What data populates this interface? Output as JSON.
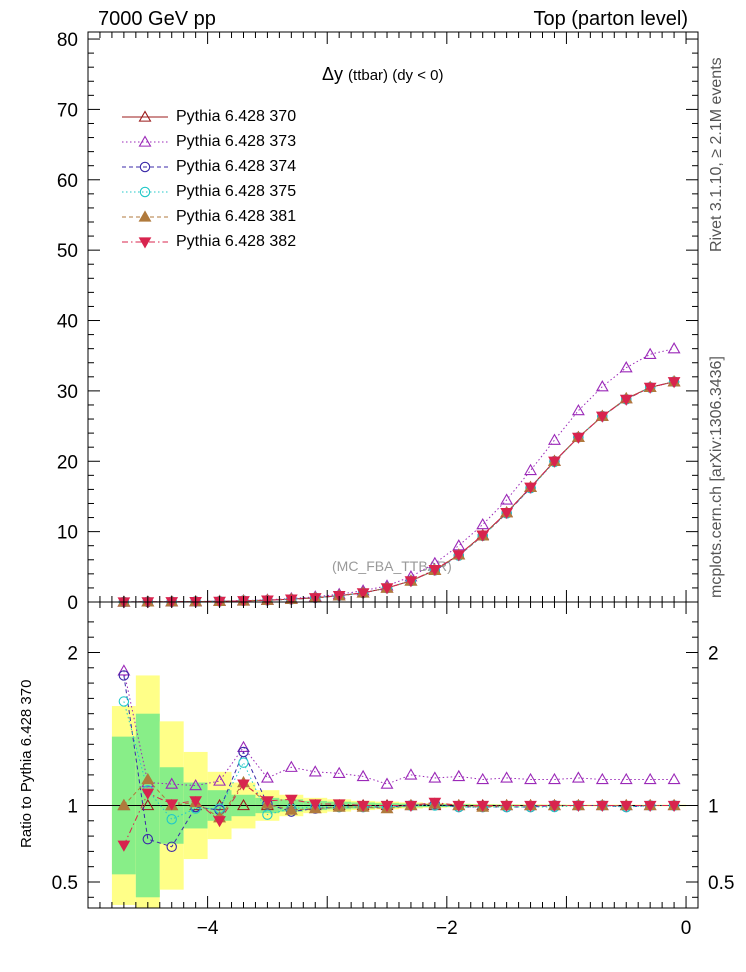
{
  "header": {
    "left": "7000 GeV pp",
    "right": "Top (parton level)"
  },
  "side_labels": {
    "rivet": "Rivet 3.1.10, ≥ 2.1M events",
    "mcplots": "mcplots.cern.ch [arXiv:1306.3436]"
  },
  "watermark": "(MC_FBA_TTBAR)",
  "chart_data": [
    {
      "type": "scatter",
      "title_main": "Δy",
      "title_sub": "(ttbar) (dy < 0)",
      "xlim": [
        -5.0,
        0.1
      ],
      "ylim": [
        0,
        81
      ],
      "yticks": [
        0,
        10,
        20,
        30,
        40,
        50,
        60,
        70,
        80
      ],
      "legend_position": "top-left",
      "x": [
        -4.7,
        -4.5,
        -4.3,
        -4.1,
        -3.9,
        -3.7,
        -3.5,
        -3.3,
        -3.1,
        -2.9,
        -2.7,
        -2.5,
        -2.3,
        -2.1,
        -1.9,
        -1.7,
        -1.5,
        -1.3,
        -1.1,
        -0.9,
        -0.7,
        -0.5,
        -0.3,
        -0.1
      ],
      "series": [
        {
          "name": "Pythia 6.428 370",
          "color": "#9b1b1b",
          "marker": "triangle-open",
          "line": "solid",
          "values": [
            0.005,
            0.02,
            0.04,
            0.06,
            0.1,
            0.15,
            0.25,
            0.4,
            0.6,
            0.9,
            1.3,
            2.0,
            3.0,
            4.5,
            6.7,
            9.5,
            12.7,
            16.3,
            20.0,
            23.4,
            26.4,
            28.9,
            30.5,
            31.3
          ]
        },
        {
          "name": "Pythia 6.428 373",
          "color": "#9b29b8",
          "marker": "triangle-open",
          "line": "dotted",
          "values": [
            0.009,
            0.023,
            0.046,
            0.069,
            0.12,
            0.2,
            0.3,
            0.5,
            0.74,
            1.1,
            1.6,
            2.3,
            3.6,
            5.5,
            8.0,
            11.0,
            14.5,
            18.7,
            23.0,
            27.2,
            30.6,
            33.3,
            35.2,
            36.0
          ]
        },
        {
          "name": "Pythia 6.428 374",
          "color": "#3b2aa8",
          "marker": "circle-open",
          "line": "dashed",
          "values": [
            0.009,
            0.016,
            0.029,
            0.06,
            0.1,
            0.19,
            0.25,
            0.38,
            0.59,
            0.88,
            1.29,
            1.99,
            3.0,
            4.5,
            6.6,
            9.4,
            12.6,
            16.2,
            20.0,
            23.4,
            26.4,
            28.8,
            30.5,
            31.3
          ]
        },
        {
          "name": "Pythia 6.428 375",
          "color": "#22c8c8",
          "marker": "circle-open",
          "line": "dotted",
          "values": [
            0.008,
            0.022,
            0.036,
            0.06,
            0.098,
            0.19,
            0.235,
            0.39,
            0.59,
            0.88,
            1.28,
            1.99,
            3.0,
            4.5,
            6.6,
            9.4,
            12.6,
            16.2,
            19.9,
            23.4,
            26.4,
            28.8,
            30.5,
            31.3
          ]
        },
        {
          "name": "Pythia 6.428 381",
          "color": "#b07a3c",
          "marker": "triangle-filled",
          "line": "dashed",
          "values": [
            0.005,
            0.022,
            0.04,
            0.06,
            0.092,
            0.17,
            0.25,
            0.39,
            0.59,
            0.89,
            1.29,
            1.98,
            3.0,
            4.5,
            6.7,
            9.4,
            12.7,
            16.3,
            20.0,
            23.4,
            26.4,
            28.9,
            30.5,
            31.3
          ]
        },
        {
          "name": "Pythia 6.428 382",
          "color": "#d8244e",
          "marker": "triangle-down-filled",
          "line": "dashdot",
          "values": [
            0.004,
            0.021,
            0.04,
            0.06,
            0.09,
            0.17,
            0.26,
            0.41,
            0.6,
            0.91,
            1.3,
            2.0,
            3.0,
            4.6,
            6.7,
            9.5,
            12.7,
            16.3,
            20.0,
            23.4,
            26.4,
            28.8,
            30.5,
            31.3
          ]
        }
      ]
    },
    {
      "type": "scatter",
      "ylabel": "Ratio to Pythia 6.428 370",
      "xlim": [
        -5.0,
        0.1
      ],
      "ylim": [
        0.33,
        2.33
      ],
      "yticks": [
        0.5,
        1,
        2
      ],
      "yticklabels": [
        "0.5",
        "1",
        "2"
      ],
      "xticks": [
        -4,
        -2,
        0
      ],
      "xticklabels": [
        "−4",
        "−2",
        "0"
      ],
      "reference": 1,
      "band_green": [
        0.45,
        0.6,
        0.25,
        0.15,
        0.1,
        0.07,
        0.05,
        0.04,
        0.03,
        0.025,
        0.02,
        0.015,
        0.012,
        0.01,
        0.008,
        0.006,
        0.005,
        0.004,
        0.004,
        0.003,
        0.003,
        0.003,
        0.003,
        0.003
      ],
      "band_yellow": [
        0.65,
        0.85,
        0.55,
        0.35,
        0.22,
        0.15,
        0.1,
        0.07,
        0.05,
        0.04,
        0.03,
        0.025,
        0.02,
        0.015,
        0.012,
        0.01,
        0.008,
        0.007,
        0.006,
        0.005,
        0.005,
        0.005,
        0.005,
        0.005
      ],
      "ratios": [
        [
          1,
          1,
          1,
          1,
          1,
          1,
          1,
          1,
          1,
          1,
          1,
          1,
          1,
          1,
          1,
          1,
          1,
          1,
          1,
          1,
          1,
          1,
          1,
          1
        ],
        [
          1.88,
          1.15,
          1.14,
          1.13,
          1.16,
          1.38,
          1.18,
          1.25,
          1.22,
          1.21,
          1.19,
          1.14,
          1.2,
          1.18,
          1.19,
          1.17,
          1.18,
          1.17,
          1.17,
          1.18,
          1.17,
          1.17,
          1.17,
          1.17
        ],
        [
          1.85,
          0.78,
          0.73,
          0.99,
          0.97,
          1.35,
          1.01,
          0.96,
          0.98,
          0.99,
          0.99,
          0.99,
          1.0,
          1.01,
          0.99,
          0.99,
          0.99,
          0.99,
          1.0,
          1.0,
          1.0,
          0.99,
          1.0,
          1.0
        ],
        [
          1.68,
          1.1,
          0.91,
          0.98,
          0.98,
          1.28,
          0.94,
          0.98,
          0.99,
          0.99,
          0.99,
          0.99,
          1.0,
          1.0,
          0.99,
          0.99,
          0.99,
          0.99,
          0.99,
          1.0,
          1.0,
          0.99,
          1.0,
          1.0
        ],
        [
          1.0,
          1.17,
          1.0,
          1.02,
          0.92,
          1.15,
          1.01,
          0.97,
          0.98,
          0.99,
          0.99,
          0.98,
          1.0,
          1.01,
          1.0,
          0.99,
          1.0,
          1.0,
          1.0,
          1.0,
          1.0,
          1.0,
          1.0,
          1.0
        ],
        [
          0.74,
          1.08,
          1.01,
          1.03,
          0.9,
          1.14,
          1.03,
          1.04,
          1.01,
          1.01,
          1.0,
          1.0,
          1.0,
          1.02,
          1.0,
          1.0,
          1.0,
          1.0,
          1.0,
          1.0,
          1.0,
          1.0,
          1.0,
          1.0
        ]
      ]
    }
  ]
}
